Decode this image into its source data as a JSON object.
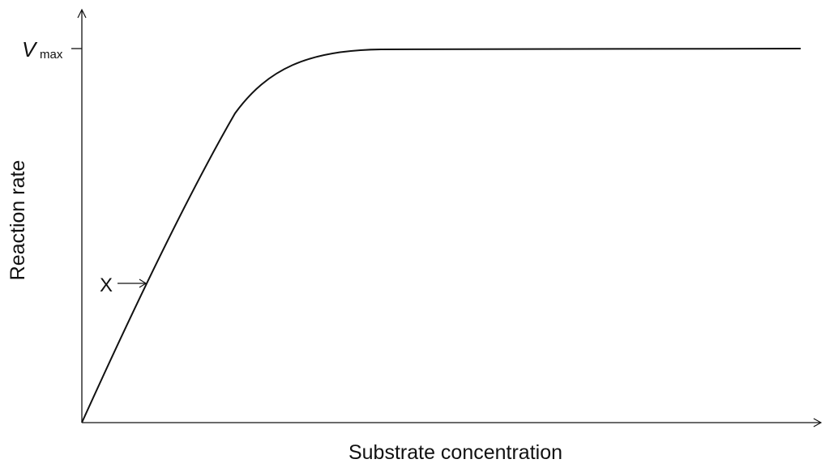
{
  "diagram": {
    "y_axis_label": "Reaction rate",
    "x_axis_label": "Substrate concentration",
    "vmax_symbol": "V",
    "vmax_subscript": "max",
    "point_label": "X"
  }
}
